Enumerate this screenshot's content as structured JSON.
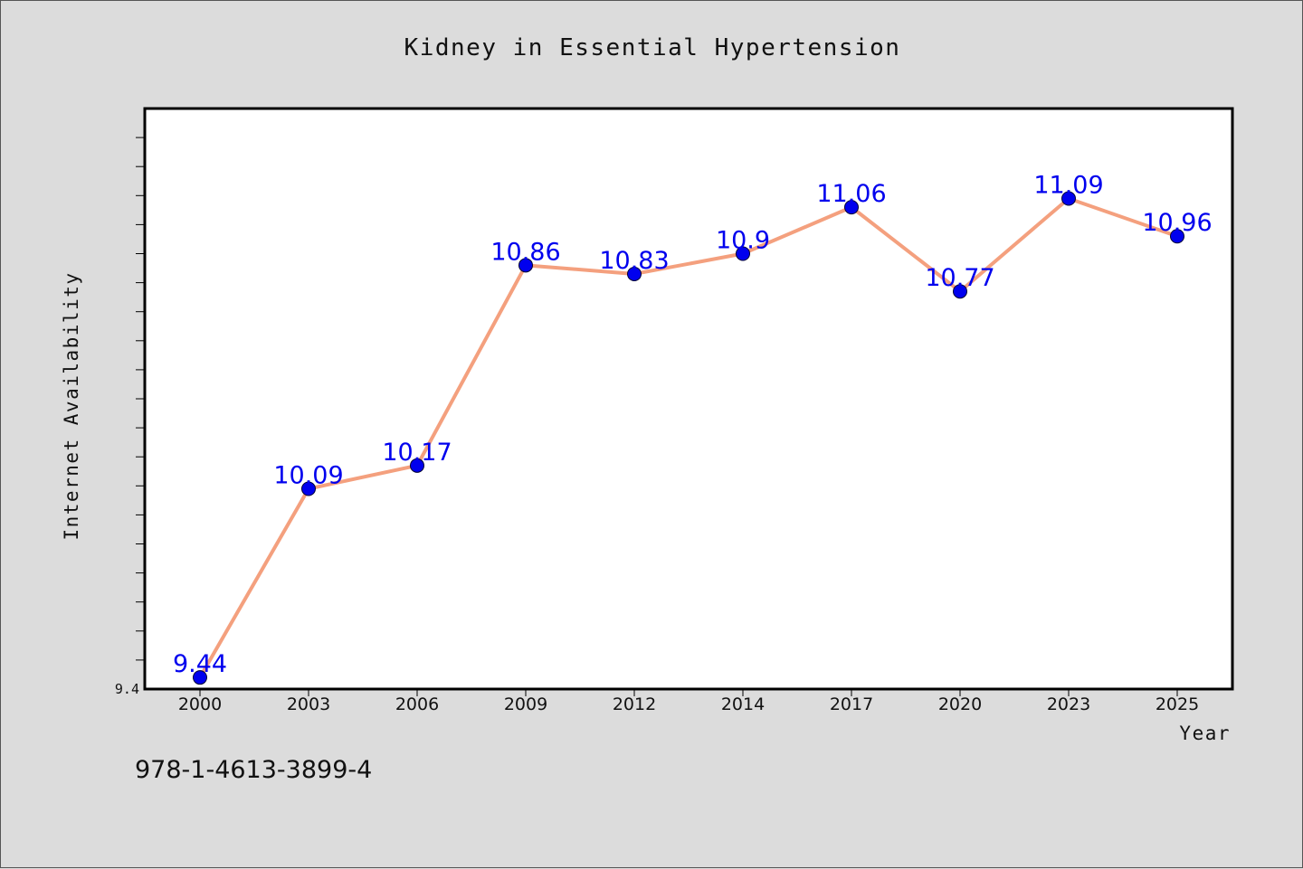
{
  "footer": {
    "code": "978-1-4613-3899-4"
  },
  "chart_data": {
    "type": "line",
    "title": "Kidney in Essential Hypertension",
    "xlabel": "Year",
    "ylabel": "Internet Availability",
    "categories": [
      "2000",
      "2003",
      "2006",
      "2009",
      "2012",
      "2014",
      "2017",
      "2020",
      "2023",
      "2025"
    ],
    "series": [
      {
        "values": [
          9.44,
          10.09,
          10.17,
          10.86,
          10.83,
          10.9,
          11.06,
          10.77,
          11.09,
          10.96
        ],
        "labels": [
          "9.44",
          "10.09",
          "10.17",
          "10.86",
          "10.83",
          "10.9",
          "11.06",
          "10.77",
          "11.09",
          "10.96"
        ]
      }
    ],
    "ylim": [
      9.4,
      11.4
    ],
    "y_tick_labels": [
      "9.4"
    ],
    "y_minor_tick_step": 0.1,
    "grid": false,
    "legend": "none",
    "colors": {
      "line": "#f4a07e",
      "marker": "#0000ee",
      "data_label": "#0000ee",
      "plot_background": "#ffffff",
      "page_background": "#dcdcdc"
    }
  }
}
